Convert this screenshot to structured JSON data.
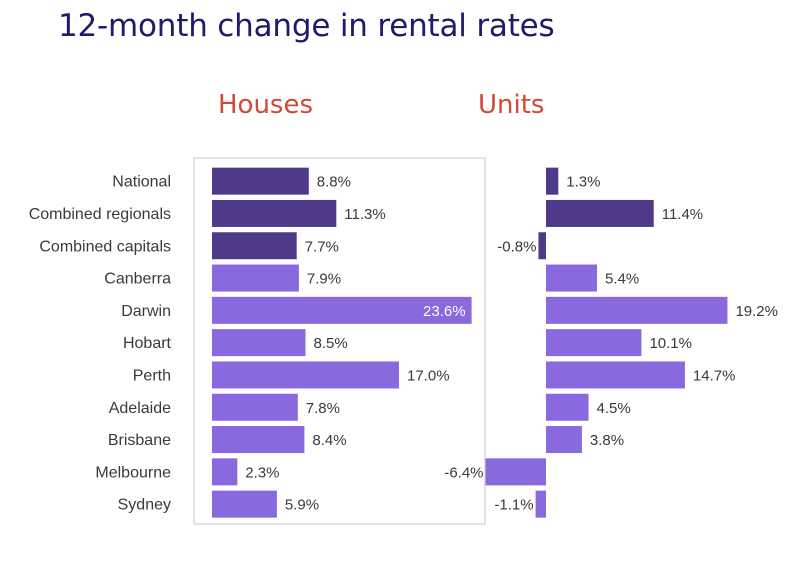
{
  "title": "12-month change in rental rates",
  "colors": {
    "dark": "#4f3a8a",
    "light": "#8a68de",
    "title": "#1f1a6b",
    "panel_title": "#d04a35"
  },
  "chart_data": {
    "type": "bar",
    "orientation": "horizontal",
    "unit": "%",
    "categories": [
      "National",
      "Combined regionals",
      "Combined capitals",
      "Canberra",
      "Darwin",
      "Hobart",
      "Perth",
      "Adelaide",
      "Brisbane",
      "Melbourne",
      "Sydney"
    ],
    "highlight_categories": [
      "National",
      "Combined regionals",
      "Combined capitals"
    ],
    "series": [
      {
        "name": "Houses",
        "values": [
          8.8,
          11.3,
          7.7,
          7.9,
          23.6,
          8.5,
          17.0,
          7.8,
          8.4,
          2.3,
          5.9
        ],
        "labels": [
          "8.8%",
          "11.3%",
          "7.7%",
          "7.9%",
          "23.6%",
          "8.5%",
          "17.0%",
          "7.8%",
          "8.4%",
          "2.3%",
          "5.9%"
        ]
      },
      {
        "name": "Units",
        "values": [
          1.3,
          11.4,
          -0.8,
          5.4,
          19.2,
          10.1,
          14.7,
          4.5,
          3.8,
          -6.4,
          -1.1
        ],
        "labels": [
          "1.3%",
          "11.4%",
          "-0.8%",
          "5.4%",
          "19.2%",
          "10.1%",
          "14.7%",
          "4.5%",
          "3.8%",
          "-6.4%",
          "-1.1%"
        ]
      }
    ]
  }
}
